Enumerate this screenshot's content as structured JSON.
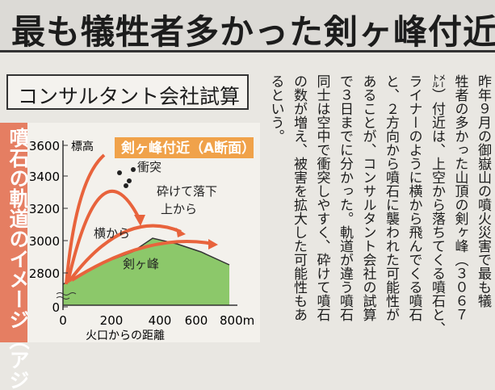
{
  "header": {
    "title": "最も犠牲者多かった剣ヶ峰付近"
  },
  "subheading": "コンサルタント会社試算",
  "figure": {
    "side_label": "噴石の軌道のイメージ（アジ",
    "panel_label": "剣ヶ峰付近（A断面）",
    "y_axis_label": "標高",
    "y_tick_labels": [
      "3600",
      "3400",
      "3200",
      "3000",
      "2800",
      "0"
    ],
    "x_tick_labels": [
      "0",
      "200",
      "400",
      "600",
      "800m"
    ],
    "x_axis_label": "火口からの距離",
    "annotations": [
      "衝突",
      "砕けて落下",
      "上から",
      "横から",
      "剣ヶ峰"
    ]
  },
  "article": {
    "columns": [
      "昨年９月の御嶽山の噴火災害で最も犠",
      "牲者の多かった山頂の剣ヶ峰（３０６７",
      "㍍）付近は、上空から落ちてくる噴石と、",
      "ライナーのように横から飛んでくる噴石",
      "と、２方向から噴石に襲われた可能性が",
      "あることが、コンサルタント会社の試算",
      "で３日までに分かった。軌道が違う噴石",
      "同士は空中で衝突しやすく、砕けて噴石",
      "の数が増え、被害を拡大した可能性もあ",
      "るという。"
    ]
  }
}
